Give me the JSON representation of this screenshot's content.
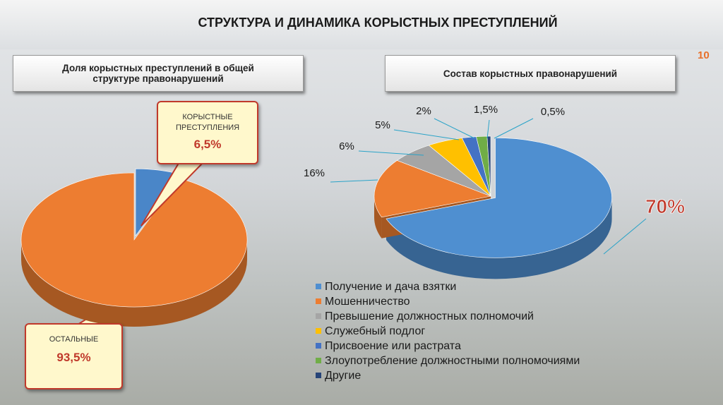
{
  "title": "СТРУКТУРА И ДИНАМИКА КОРЫСТНЫХ ПРЕСТУПЛЕНИЙ",
  "page_number": 10,
  "chart_data": [
    {
      "type": "pie",
      "title": "Доля корыстных преступлений в общей структуре правонарушений",
      "categories": [
        "КОРЫСТНЫЕ ПРЕСТУПЛЕНИЯ",
        "ОСТАЛЬНЫЕ"
      ],
      "values": [
        6.5,
        93.5
      ],
      "value_labels": [
        "6,5%",
        "93,5%"
      ],
      "colors": [
        "#4a86c8",
        "#ed7d31"
      ]
    },
    {
      "type": "pie",
      "title": "Состав корыстных правонарушений",
      "categories": [
        "Получение и дача взятки",
        "Мошенничество",
        "Превышение должностных полномочий",
        "Служебный подлог",
        "Присвоение или растрата",
        "Злоупотребление должностными полномочиями",
        "Другие"
      ],
      "values": [
        70,
        16,
        6,
        5,
        2,
        1.5,
        0.5
      ],
      "value_labels": [
        "70%",
        "16%",
        "6%",
        "5%",
        "2%",
        "1,5%",
        "0,5%"
      ],
      "colors": [
        "#4f8fd0",
        "#ed7d31",
        "#a5a5a5",
        "#ffc000",
        "#4472c4",
        "#70ad47",
        "#264478"
      ]
    }
  ]
}
